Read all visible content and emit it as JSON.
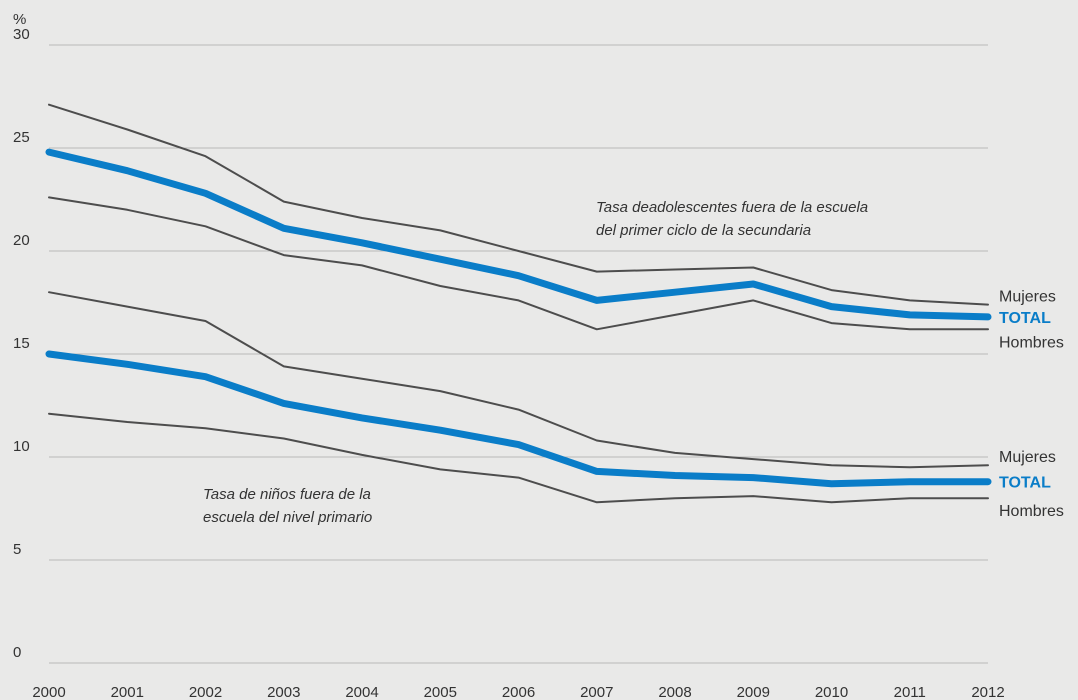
{
  "chart_data": {
    "type": "line",
    "ylabel": "%",
    "ylim": [
      0,
      30
    ],
    "yticks": [
      0,
      5,
      10,
      15,
      20,
      25,
      30
    ],
    "grid": true,
    "x": [
      2000,
      2001,
      2002,
      2003,
      2004,
      2005,
      2006,
      2007,
      2008,
      2009,
      2010,
      2011,
      2012
    ],
    "annotations": {
      "secondary_line1": "Tasa deadolescentes fuera de la escuela",
      "secondary_line2": "del primer ciclo de la secundaria",
      "primary_line1": "Tasa de niños fuera de la",
      "primary_line2": "escuela del nivel primario"
    },
    "groups": [
      {
        "id": "secondary",
        "series": [
          {
            "name": "Mujeres",
            "role": "mujeres",
            "color": "#4d4d4d",
            "values": [
              27.1,
              25.9,
              24.6,
              22.4,
              21.6,
              21.0,
              20.0,
              19.0,
              19.1,
              19.2,
              18.1,
              17.6,
              17.4
            ]
          },
          {
            "name": "TOTAL",
            "role": "total",
            "color": "#0a7dc8",
            "values": [
              24.8,
              23.9,
              22.8,
              21.1,
              20.4,
              19.6,
              18.8,
              17.6,
              18.0,
              18.4,
              17.3,
              16.9,
              16.8
            ]
          },
          {
            "name": "Hombres",
            "role": "hombres",
            "color": "#4d4d4d",
            "values": [
              22.6,
              22.0,
              21.2,
              19.8,
              19.3,
              18.3,
              17.6,
              16.2,
              16.9,
              17.6,
              16.5,
              16.2,
              16.2
            ]
          }
        ]
      },
      {
        "id": "primary",
        "series": [
          {
            "name": "Mujeres",
            "role": "mujeres",
            "color": "#4d4d4d",
            "values": [
              18.0,
              17.3,
              16.6,
              14.4,
              13.8,
              13.2,
              12.3,
              10.8,
              10.2,
              9.9,
              9.6,
              9.5,
              9.6
            ]
          },
          {
            "name": "TOTAL",
            "role": "total",
            "color": "#0a7dc8",
            "values": [
              15.0,
              14.5,
              13.9,
              12.6,
              11.9,
              11.3,
              10.6,
              9.3,
              9.1,
              9.0,
              8.7,
              8.8,
              8.8
            ]
          },
          {
            "name": "Hombres",
            "role": "hombres",
            "color": "#4d4d4d",
            "values": [
              12.1,
              11.7,
              11.4,
              10.9,
              10.1,
              9.4,
              9.0,
              7.8,
              8.0,
              8.1,
              7.8,
              8.0,
              8.0
            ]
          }
        ]
      }
    ]
  },
  "colors": {
    "background": "#e9e9e8",
    "grid": "#b9b9b9",
    "text": "#333333",
    "total": "#0a7dc8",
    "gender": "#4d4d4d"
  }
}
